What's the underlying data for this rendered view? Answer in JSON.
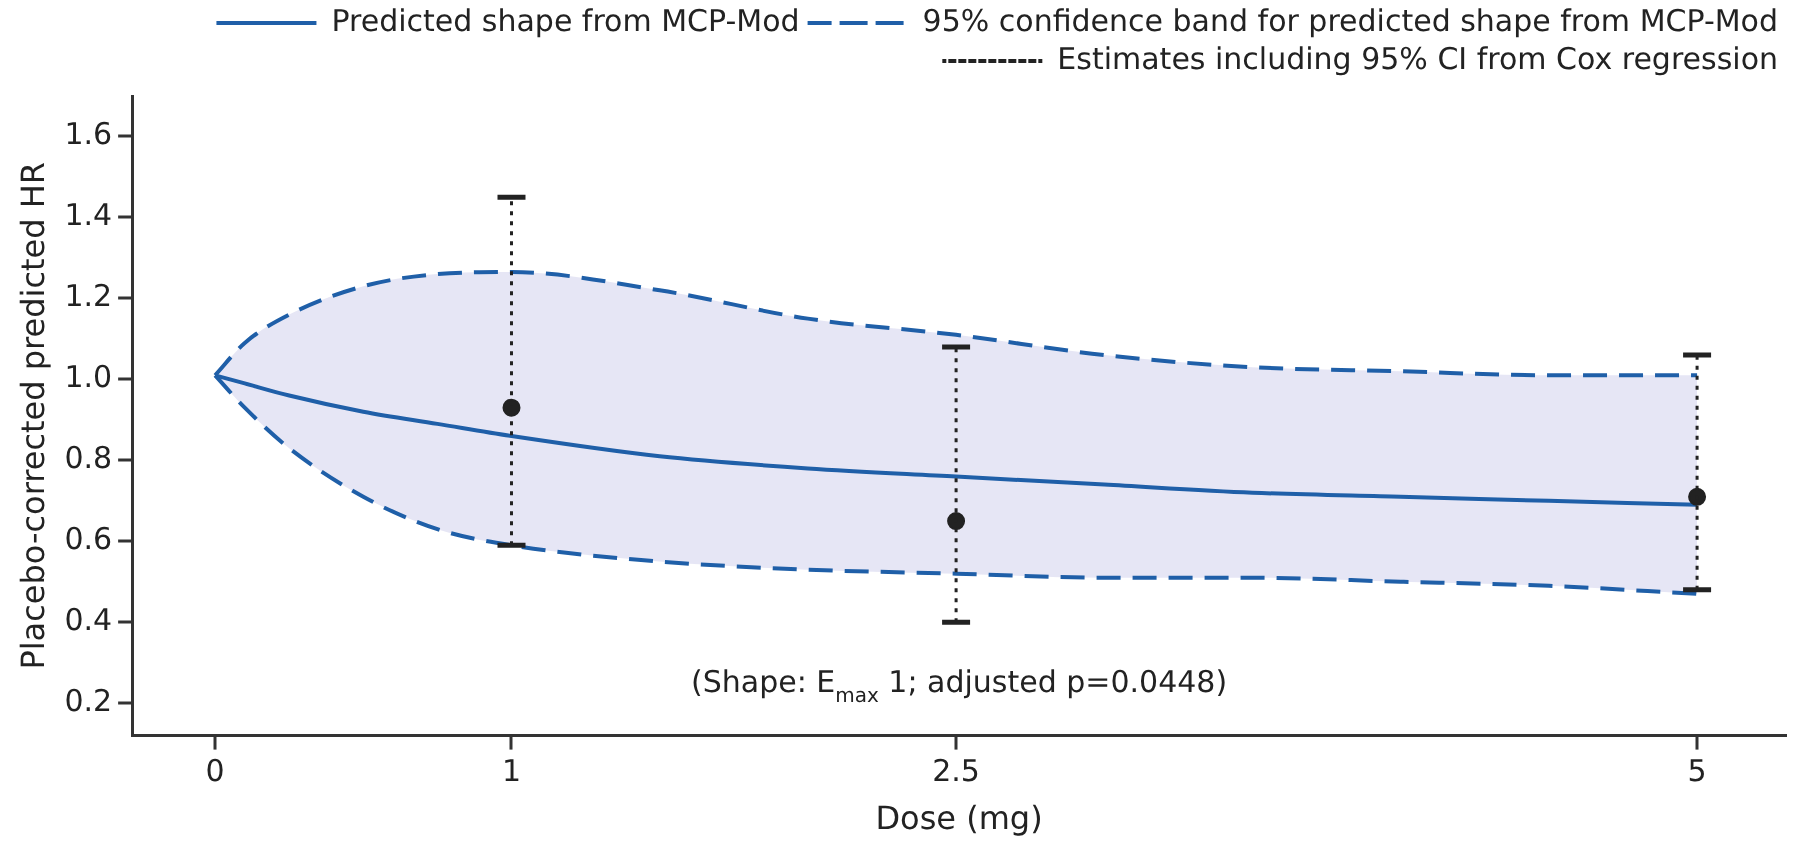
{
  "chart_data": {
    "type": "line",
    "xlabel": "Dose (mg)",
    "ylabel": "Placebo-corrected predicted HR",
    "xlim": [
      -0.28,
      5.3
    ],
    "xticks": [
      0,
      1,
      2.5,
      5
    ],
    "ylim": [
      0.12,
      1.7
    ],
    "yticks": [
      0.2,
      0.4,
      0.6,
      0.8,
      {
        "value": 1,
        "label": "1.0"
      },
      1.2,
      1.4,
      1.6
    ],
    "grid": false,
    "legend": "top right",
    "annotations": [
      "(Shape: E$_{max}$ 1; adjusted p=0.0448)"
    ],
    "series": [
      {
        "name": "Predicted shape from MCP-Mod",
        "type": "line",
        "line_style": "solid",
        "marker": "none",
        "color": "#1f5fa8",
        "x": [
          0,
          0.1,
          0.25,
          0.5,
          0.75,
          1,
          1.5,
          2,
          2.5,
          3,
          3.5,
          4,
          4.5,
          5
        ],
        "values": [
          1.01,
          0.99,
          0.96,
          0.92,
          0.89,
          0.86,
          0.81,
          0.78,
          0.76,
          0.74,
          0.72,
          0.71,
          0.7,
          0.69
        ],
        "lower": [
          1.01,
          0.93,
          0.83,
          0.71,
          0.63,
          0.59,
          0.55,
          0.53,
          0.52,
          0.51,
          0.51,
          0.5,
          0.49,
          0.47
        ],
        "upper": [
          1.01,
          1.09,
          1.16,
          1.23,
          1.26,
          1.265,
          1.22,
          1.15,
          1.11,
          1.06,
          1.03,
          1.02,
          1.01,
          1.01
        ]
      },
      {
        "name": "95% confidence band for predicted shape from MCP-Mod",
        "type": "line",
        "line_style": "dashed",
        "marker": "none",
        "color": "#1f5fa8",
        "x": [
          0,
          0.1,
          0.25,
          0.5,
          0.75,
          1,
          1.5,
          2,
          2.5,
          3,
          3.5,
          4,
          4.5,
          5
        ],
        "values": [
          1.01,
          1.09,
          1.16,
          1.23,
          1.26,
          1.265,
          1.22,
          1.15,
          1.11,
          1.06,
          1.03,
          1.02,
          1.01,
          1.01
        ]
      },
      {
        "type": "line",
        "line_style": "dashed",
        "marker": "none",
        "color": "#1f5fa8",
        "x": [
          0,
          0.1,
          0.25,
          0.5,
          0.75,
          1,
          1.5,
          2,
          2.5,
          3,
          3.5,
          4,
          4.5,
          5
        ],
        "values": [
          1.01,
          0.93,
          0.83,
          0.71,
          0.63,
          0.59,
          0.55,
          0.53,
          0.52,
          0.51,
          0.51,
          0.5,
          0.49,
          0.47
        ]
      },
      {
        "name": "Estimates including 95% CI from Cox regression",
        "type": "scatter",
        "line_style": "dotted",
        "marker": "circle",
        "color": "#222222",
        "x": [
          1,
          2.5,
          5
        ],
        "values": [
          0.93,
          0.65,
          0.71
        ],
        "errors": [
          [
            0.59,
            1.45
          ],
          [
            0.4,
            1.08
          ],
          [
            0.48,
            1.06
          ]
        ]
      }
    ]
  }
}
